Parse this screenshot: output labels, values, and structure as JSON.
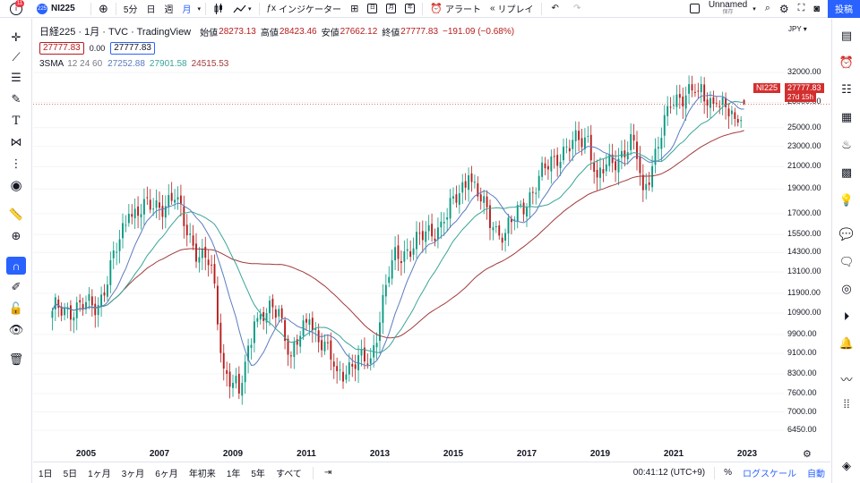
{
  "topbar": {
    "notif_count": "11",
    "symbol_badge": "225",
    "symbol": "NI225",
    "intervals": [
      "5分",
      "日",
      "週",
      "月"
    ],
    "indicators_label": "インジケーター",
    "alert_label": "アラート",
    "replay_label": "リプレイ",
    "layout_name": "Unnamed",
    "layout_status": "保存",
    "post_label": "投稿"
  },
  "legend": {
    "title": "日経225 · 1月 · TVC · TradingView",
    "open_label": "始値",
    "open": "28273.13",
    "high_label": "高値",
    "high": "28423.46",
    "low_label": "安値",
    "low": "27662.12",
    "close_label": "終値",
    "close": "27777.83",
    "change": "−191.09 (−0.68%)",
    "sell_price": "27777.83",
    "spread": "0.00",
    "buy_price": "27777.83",
    "sma_name": "3SMA",
    "sma_params": "12 24 60",
    "sma_values": [
      "27252.88",
      "27901.58",
      "24515.53"
    ]
  },
  "axis": {
    "currency": "JPY",
    "price_ticks": [
      "32000.00",
      "28000.00",
      "25000.00",
      "23000.00",
      "21000.00",
      "19000.00",
      "17000.00",
      "15500.00",
      "14300.00",
      "13100.00",
      "11900.00",
      "10900.00",
      "9900.00",
      "9100.00",
      "8300.00",
      "7600.00",
      "7000.00",
      "6450.00"
    ],
    "year_ticks": [
      "2005",
      "2007",
      "2009",
      "2011",
      "2013",
      "2015",
      "2017",
      "2019",
      "2021",
      "2023"
    ],
    "symbol_tag": "NI225",
    "price_tag": "27777.83",
    "countdown_tag": "27d 15h"
  },
  "bottombar": {
    "ranges": [
      "1日",
      "5日",
      "1ヶ月",
      "3ヶ月",
      "6ヶ月",
      "年初来",
      "1年",
      "5年",
      "すべて"
    ],
    "time": "00:41:12 (UTC+9)",
    "percent": "%",
    "log_scale": "ログスケール",
    "auto": "自動"
  },
  "colors": {
    "up": "#089981",
    "down": "#b71c1c",
    "sma12": "#5b7cc0",
    "sma24": "#3aa597",
    "sma60": "#a23a3a",
    "accent": "#2962ff"
  },
  "chart_data": {
    "type": "candlestick",
    "scale": "log",
    "interval": "1M",
    "ylim": [
      6000,
      34000
    ],
    "x_start": "2004-02",
    "x_end": "2022-12",
    "key_closes": [
      {
        "date": "2004-02",
        "close": 11000
      },
      {
        "date": "2005-05",
        "close": 11300
      },
      {
        "date": "2006-03",
        "close": 17000
      },
      {
        "date": "2007-06",
        "close": 18100
      },
      {
        "date": "2008-02",
        "close": 14000
      },
      {
        "date": "2008-06",
        "close": 13500
      },
      {
        "date": "2008-10",
        "close": 8500
      },
      {
        "date": "2009-03",
        "close": 7600
      },
      {
        "date": "2009-08",
        "close": 10500
      },
      {
        "date": "2010-04",
        "close": 11100
      },
      {
        "date": "2010-08",
        "close": 9000
      },
      {
        "date": "2011-02",
        "close": 10600
      },
      {
        "date": "2011-11",
        "close": 8400
      },
      {
        "date": "2012-10",
        "close": 8900
      },
      {
        "date": "2013-05",
        "close": 13800
      },
      {
        "date": "2014-10",
        "close": 16400
      },
      {
        "date": "2015-06",
        "close": 20200
      },
      {
        "date": "2016-02",
        "close": 16000
      },
      {
        "date": "2016-06",
        "close": 15600
      },
      {
        "date": "2017-10",
        "close": 22000
      },
      {
        "date": "2018-09",
        "close": 24100
      },
      {
        "date": "2018-12",
        "close": 20000
      },
      {
        "date": "2019-12",
        "close": 23600
      },
      {
        "date": "2020-03",
        "close": 18900
      },
      {
        "date": "2020-12",
        "close": 27400
      },
      {
        "date": "2021-02",
        "close": 29000
      },
      {
        "date": "2021-09",
        "close": 29500
      },
      {
        "date": "2022-03",
        "close": 27800
      },
      {
        "date": "2022-09",
        "close": 26000
      },
      {
        "date": "2022-12",
        "close": 27777.83
      }
    ],
    "sma_periods": [
      12,
      24,
      60
    ],
    "last": {
      "open": 28273.13,
      "high": 28423.46,
      "low": 27662.12,
      "close": 27777.83
    }
  }
}
